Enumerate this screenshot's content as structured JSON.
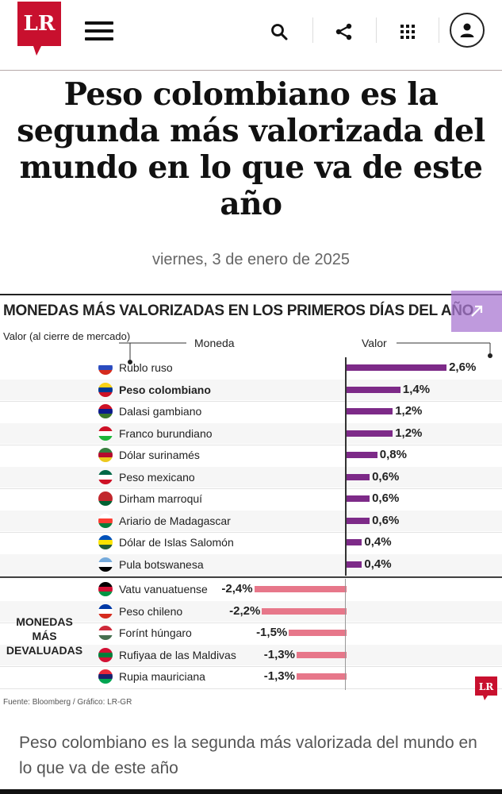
{
  "header": {
    "logo_text": "LR",
    "colors": {
      "brand": "#c8102e",
      "text": "#111111"
    },
    "icons": [
      "menu-icon",
      "search-icon",
      "share-icon",
      "grid-icon",
      "user-icon"
    ]
  },
  "article": {
    "title": "Peso colombiano es la segunda más valorizada del mundo en lo que va de este año",
    "date": "viernes, 3 de enero de 2025",
    "caption": "Peso colombiano es la segunda más valorizada del mundo en lo que va de este año"
  },
  "chart_data": {
    "type": "bar",
    "title": "MONEDAS MÁS VALORIZADAS EN LOS PRIMEROS DÍAS DEL AÑO",
    "subtitle": "Valor (al cierre de mercado)",
    "column_currency": "Moneda",
    "column_value": "Valor",
    "devalued_label": "MONEDAS MÁS DEVALUADAS",
    "source": "Fuente: Bloomberg / Gráfico: LR-GR",
    "logo": "LR",
    "unit": "%",
    "xlim": [
      -2.4,
      2.6
    ],
    "categories": [
      "Rublo ruso",
      "Peso colombiano",
      "Dalasi gambiano",
      "Franco burundiano",
      "Dólar surinamés",
      "Peso mexicano",
      "Dirham marroquí",
      "Ariario de Madagascar",
      "Dólar de Islas Salomón",
      "Pula botswanesa",
      "Vatu vanuatuense",
      "Peso chileno",
      "Forínt húngaro",
      "Rufiyaa de las Maldivas",
      "Rupia mauriciana"
    ],
    "values": [
      2.6,
      1.4,
      1.2,
      1.2,
      0.8,
      0.6,
      0.6,
      0.6,
      0.4,
      0.4,
      -2.4,
      -2.2,
      -1.5,
      -1.3,
      -1.3
    ],
    "value_labels": [
      "2,6%",
      "1,4%",
      "1,2%",
      "1,2%",
      "0,8%",
      "0,6%",
      "0,6%",
      "0,6%",
      "0,4%",
      "0,4%",
      "-2,4%",
      "-2,2%",
      "-1,5%",
      "-1,3%",
      "-1,3%"
    ],
    "highlight": "Peso colombiano",
    "colors": {
      "positive": "#7d2a88",
      "negative": "#e7778a"
    }
  }
}
